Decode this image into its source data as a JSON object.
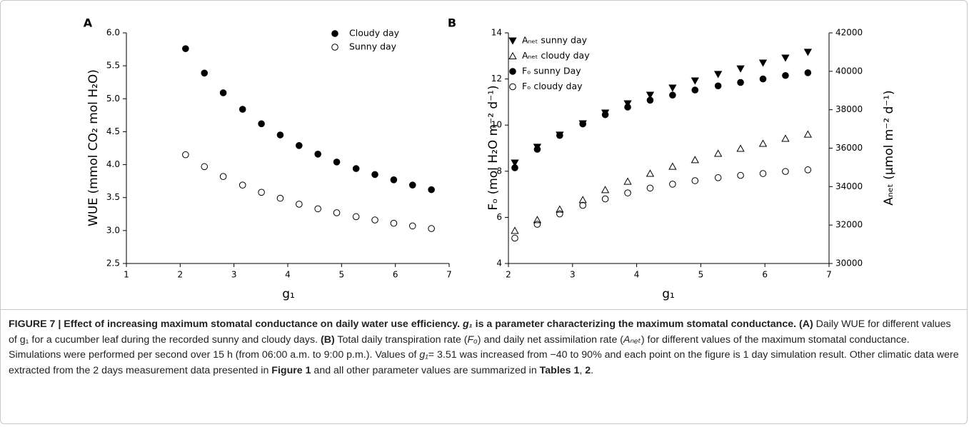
{
  "chart_data": [
    {
      "type": "scatter",
      "panel": "A",
      "xlabel": "g₁",
      "ylabel": "WUE (mmol CO₂ mol H₂O)",
      "x": [
        2.1,
        2.45,
        2.8,
        3.16,
        3.51,
        3.86,
        4.21,
        4.56,
        4.91,
        5.27,
        5.62,
        5.97,
        6.32,
        6.67
      ],
      "series": [
        {
          "name": "Cloudy day",
          "color": "#000000",
          "fill": "#000000",
          "marker": "circle",
          "values": [
            5.76,
            5.39,
            5.09,
            4.84,
            4.62,
            4.45,
            4.29,
            4.16,
            4.04,
            3.94,
            3.85,
            3.77,
            3.69,
            3.62
          ]
        },
        {
          "name": "Sunny day",
          "color": "#000000",
          "fill": "none",
          "marker": "circle",
          "values": [
            4.15,
            3.97,
            3.82,
            3.69,
            3.58,
            3.49,
            3.4,
            3.33,
            3.27,
            3.21,
            3.16,
            3.11,
            3.07,
            3.03
          ]
        }
      ],
      "xlim": [
        1,
        7
      ],
      "xticks": [
        1,
        2,
        3,
        4,
        5,
        6,
        7
      ],
      "ylim": [
        2.5,
        6.0
      ],
      "yticks": [
        2.5,
        {
          "value": 3,
          "label": "3.0"
        },
        3.5,
        {
          "value": 4,
          "label": "4.0"
        },
        4.5,
        {
          "value": 5,
          "label": "5.0"
        },
        5.5,
        {
          "value": 6,
          "label": "6.0"
        }
      ],
      "legend": "upper right"
    },
    {
      "type": "scatter",
      "panel": "B",
      "xlabel": "g₁",
      "ylabel": "Fₒ (mol H₂O m⁻² d⁻¹)",
      "y2label": "Aₙₑₜ (µmol m⁻² d⁻¹)",
      "x": [
        2.1,
        2.45,
        2.8,
        3.16,
        3.51,
        3.86,
        4.21,
        4.56,
        4.91,
        5.27,
        5.62,
        5.97,
        6.32,
        6.67
      ],
      "series": [
        {
          "name": "Aₙₑₜ sunny day",
          "color": "#000000",
          "fill": "#000000",
          "marker": "triangle-down",
          "axis": "y2",
          "values": [
            35240,
            36060,
            36690,
            37280,
            37840,
            38320,
            38770,
            39140,
            39510,
            39850,
            40140,
            40440,
            40700,
            41000
          ]
        },
        {
          "name": "Aₙₑₜ cloudy day",
          "color": "#000000",
          "fill": "none",
          "marker": "triangle-up",
          "axis": "y2",
          "values": [
            31710,
            32270,
            32820,
            33310,
            33830,
            34270,
            34680,
            35050,
            35390,
            35720,
            35980,
            36240,
            36500,
            36720
          ]
        },
        {
          "name": "Fₒ sunny Day",
          "color": "#000000",
          "fill": "#000000",
          "marker": "circle",
          "values": [
            8.15,
            8.95,
            9.55,
            10.05,
            10.45,
            10.78,
            11.08,
            11.3,
            11.52,
            11.7,
            11.85,
            12.0,
            12.15,
            12.27
          ]
        },
        {
          "name": "Fₒ cloudy day",
          "color": "#000000",
          "fill": "none",
          "marker": "circle",
          "values": [
            5.1,
            5.7,
            6.15,
            6.52,
            6.8,
            7.06,
            7.27,
            7.44,
            7.59,
            7.72,
            7.82,
            7.9,
            7.99,
            8.06
          ]
        }
      ],
      "xlim": [
        2,
        7
      ],
      "xticks": [
        2,
        3,
        4,
        5,
        6,
        7
      ],
      "ylim": [
        4,
        14
      ],
      "yticks": [
        4,
        6,
        8,
        10,
        12,
        14
      ],
      "y2lim": [
        30000,
        42000
      ],
      "y2ticks": [
        30000,
        32000,
        34000,
        36000,
        38000,
        40000,
        42000
      ],
      "legend": "upper left"
    }
  ],
  "caption": {
    "parts": [
      "FIGURE 7 | Effect of increasing maximum stomatal conductance on daily water use efficiency. ",
      "g₁",
      " is a parameter characterizing the maximum stomatal conductance. ",
      "(A)",
      " Daily WUE for different values of g₁ for a cucumber leaf during the recorded sunny and cloudy days. ",
      "(B)",
      " Total daily transpiration rate (",
      "Fₒ",
      ") and daily net assimilation rate (",
      "Aₙₑₜ",
      ") for different values of the maximum stomatal conductance. Simulations were performed per second over 15 h (from 06:00 a.m. to 9:00 p.m.). Values of ",
      "g₁",
      "= 3.51 was increased from −40 to 90% and each point on the figure is 1 day simulation result. Other climatic data were extracted from the 2 days measurement data presented in ",
      "Figure 1",
      " and all other parameter values are summarized in ",
      "Tables 1",
      ", ",
      "2",
      "."
    ]
  }
}
